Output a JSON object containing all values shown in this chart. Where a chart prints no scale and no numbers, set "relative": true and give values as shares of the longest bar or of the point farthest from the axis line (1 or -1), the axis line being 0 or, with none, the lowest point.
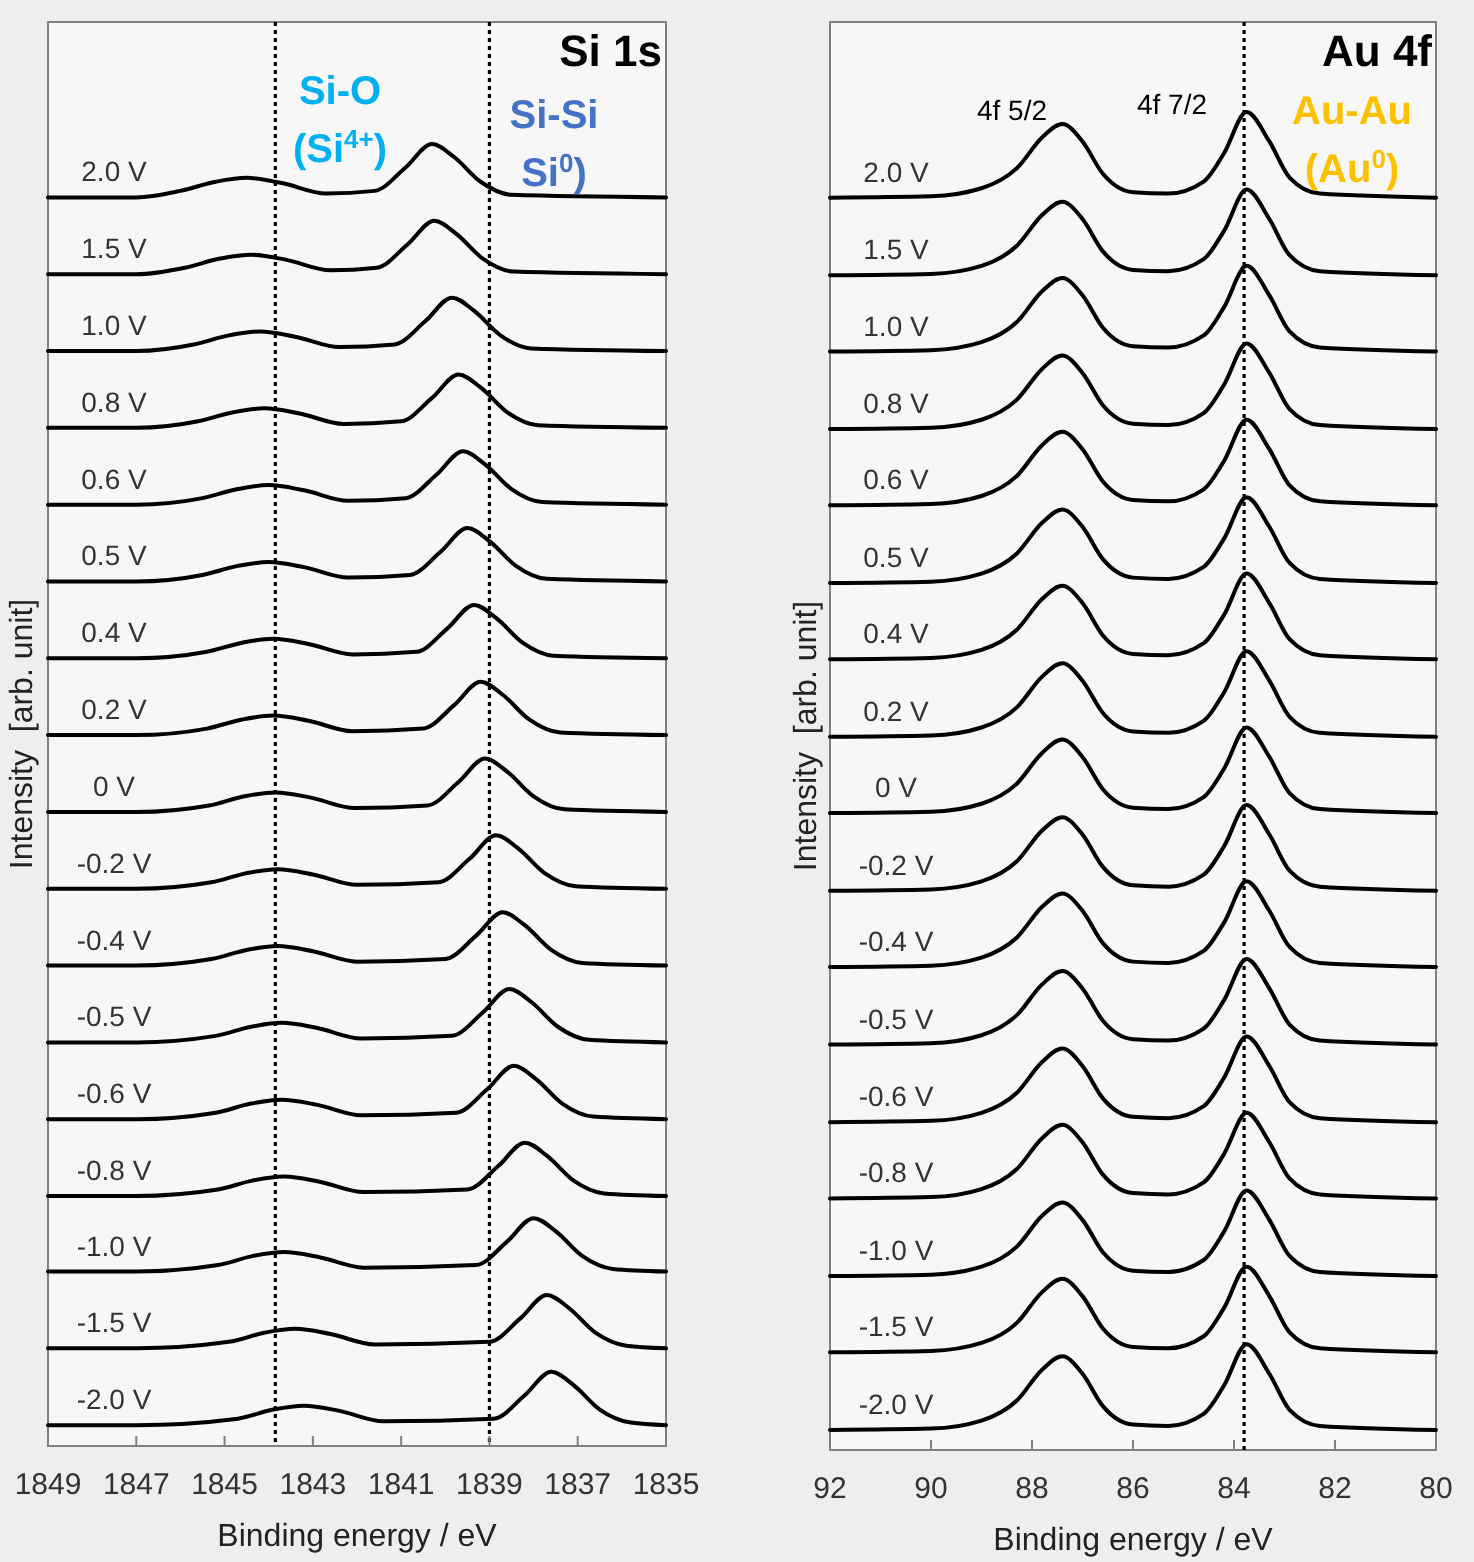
{
  "chart_data": [
    {
      "type": "line",
      "relative": true,
      "xlabel": "Binding energy / eV",
      "ylabel": "Intensity  [arb. unit]",
      "xlim": [
        1849,
        1835
      ],
      "xticks": [
        1849,
        1847,
        1845,
        1843,
        1841,
        1839,
        1837,
        1835
      ],
      "grid": false,
      "annotations": [
        "Si 1s",
        "Si-O (Si$^{4+}$)",
        "Si-Si Si$^{0}$)"
      ],
      "ref_lines": [
        {
          "axis": "x",
          "value": 1843.85,
          "line_style": "dotted",
          "color": "#000000"
        },
        {
          "axis": "x",
          "value": 1839.0,
          "line_style": "dotted",
          "color": "#000000"
        }
      ],
      "series": [
        {
          "name": "2.0 V",
          "color": "#000000",
          "x": [
            1849,
            1847,
            1846.0,
            1845.2,
            1844.5,
            1843.7,
            1842.7,
            1841.6,
            1840.9,
            1840.3,
            1839.8,
            1839.2,
            1838.5,
            1835
          ],
          "values": [
            0.959,
            0.959,
            0.964,
            0.971,
            0.974,
            0.97,
            0.962,
            0.964,
            0.982,
            1.0,
            0.99,
            0.971,
            0.961,
            0.959
          ]
        },
        {
          "name": "1.5 V",
          "color": "#000000",
          "x": [
            1849,
            1847,
            1845.9,
            1845.1,
            1844.4,
            1843.6,
            1842.6,
            1841.55,
            1840.85,
            1840.25,
            1839.75,
            1839.15,
            1838.45,
            1835
          ],
          "values": [
            0.9,
            0.9,
            0.905,
            0.912,
            0.915,
            0.911,
            0.903,
            0.905,
            0.923,
            0.941,
            0.931,
            0.912,
            0.902,
            0.9
          ]
        },
        {
          "name": "1.0 V",
          "color": "#000000",
          "x": [
            1849,
            1847,
            1845.7,
            1844.9,
            1844.2,
            1843.4,
            1842.4,
            1841.15,
            1840.45,
            1839.85,
            1839.35,
            1838.75,
            1838.05,
            1835
          ],
          "values": [
            0.841,
            0.841,
            0.846,
            0.853,
            0.856,
            0.852,
            0.844,
            0.846,
            0.864,
            0.882,
            0.872,
            0.853,
            0.843,
            0.841
          ]
        },
        {
          "name": "0.8 V",
          "color": "#000000",
          "x": [
            1849,
            1847,
            1845.6,
            1844.8,
            1844.1,
            1843.3,
            1842.3,
            1841.0,
            1840.3,
            1839.7,
            1839.2,
            1838.6,
            1837.9,
            1835
          ],
          "values": [
            0.782,
            0.782,
            0.787,
            0.794,
            0.797,
            0.793,
            0.785,
            0.787,
            0.805,
            0.823,
            0.813,
            0.794,
            0.784,
            0.782
          ]
        },
        {
          "name": "0.6 V",
          "color": "#000000",
          "x": [
            1849,
            1847,
            1845.5,
            1844.7,
            1844.0,
            1843.2,
            1842.2,
            1840.9,
            1840.2,
            1839.6,
            1839.1,
            1838.5,
            1837.8,
            1835
          ],
          "values": [
            0.723,
            0.723,
            0.728,
            0.735,
            0.738,
            0.734,
            0.726,
            0.728,
            0.746,
            0.764,
            0.754,
            0.735,
            0.725,
            0.723
          ]
        },
        {
          "name": "0.5 V",
          "color": "#000000",
          "x": [
            1849,
            1847,
            1845.5,
            1844.7,
            1844.0,
            1843.2,
            1842.2,
            1840.8,
            1840.1,
            1839.5,
            1839.0,
            1838.4,
            1837.7,
            1835
          ],
          "values": [
            0.664,
            0.664,
            0.669,
            0.676,
            0.679,
            0.675,
            0.667,
            0.669,
            0.687,
            0.705,
            0.695,
            0.676,
            0.666,
            0.664
          ]
        },
        {
          "name": "0.4 V",
          "color": "#000000",
          "x": [
            1849,
            1847,
            1845.4,
            1844.6,
            1843.9,
            1843.1,
            1842.1,
            1840.65,
            1839.95,
            1839.35,
            1838.85,
            1838.25,
            1837.55,
            1835
          ],
          "values": [
            0.605,
            0.605,
            0.61,
            0.617,
            0.62,
            0.616,
            0.608,
            0.61,
            0.628,
            0.646,
            0.636,
            0.617,
            0.607,
            0.605
          ]
        },
        {
          "name": "0.2 V",
          "color": "#000000",
          "x": [
            1849,
            1847,
            1845.4,
            1844.6,
            1843.9,
            1843.1,
            1842.1,
            1840.5,
            1839.8,
            1839.2,
            1838.7,
            1838.1,
            1837.4,
            1835
          ],
          "values": [
            0.546,
            0.546,
            0.551,
            0.558,
            0.561,
            0.557,
            0.549,
            0.551,
            0.569,
            0.587,
            0.577,
            0.558,
            0.548,
            0.546
          ]
        },
        {
          "name": "0 V",
          "color": "#000000",
          "x": [
            1849,
            1847,
            1845.35,
            1844.55,
            1843.85,
            1843.05,
            1842.05,
            1840.4,
            1839.7,
            1839.1,
            1838.6,
            1838.0,
            1837.3,
            1835
          ],
          "values": [
            0.487,
            0.487,
            0.492,
            0.499,
            0.502,
            0.498,
            0.49,
            0.492,
            0.51,
            0.528,
            0.518,
            0.499,
            0.489,
            0.487
          ]
        },
        {
          "name": "-0.2 V",
          "color": "#000000",
          "x": [
            1849,
            1847,
            1845.3,
            1844.5,
            1843.8,
            1843.0,
            1842.0,
            1840.15,
            1839.45,
            1838.85,
            1838.35,
            1837.75,
            1837.05,
            1835
          ],
          "values": [
            0.428,
            0.428,
            0.433,
            0.44,
            0.443,
            0.439,
            0.431,
            0.433,
            0.451,
            0.469,
            0.459,
            0.44,
            0.43,
            0.428
          ]
        },
        {
          "name": "-0.4 V",
          "color": "#000000",
          "x": [
            1849,
            1847,
            1845.3,
            1844.5,
            1843.8,
            1843.0,
            1842.0,
            1840.0,
            1839.3,
            1838.7,
            1838.2,
            1837.6,
            1836.9,
            1835
          ],
          "values": [
            0.369,
            0.369,
            0.374,
            0.381,
            0.384,
            0.38,
            0.372,
            0.374,
            0.392,
            0.41,
            0.4,
            0.381,
            0.371,
            0.369
          ]
        },
        {
          "name": "-0.5 V",
          "color": "#000000",
          "x": [
            1849,
            1847,
            1845.2,
            1844.4,
            1843.7,
            1842.9,
            1841.9,
            1839.85,
            1839.15,
            1838.55,
            1838.05,
            1837.45,
            1836.75,
            1835
          ],
          "values": [
            0.31,
            0.31,
            0.315,
            0.322,
            0.325,
            0.321,
            0.313,
            0.315,
            0.333,
            0.351,
            0.341,
            0.322,
            0.312,
            0.31
          ]
        },
        {
          "name": "-0.6 V",
          "color": "#000000",
          "x": [
            1849,
            1847,
            1845.2,
            1844.4,
            1843.7,
            1842.9,
            1841.9,
            1839.75,
            1839.05,
            1838.45,
            1837.95,
            1837.35,
            1836.65,
            1835
          ],
          "values": [
            0.251,
            0.251,
            0.256,
            0.263,
            0.266,
            0.262,
            0.254,
            0.256,
            0.274,
            0.292,
            0.282,
            0.263,
            0.253,
            0.251
          ]
        },
        {
          "name": "-0.8 V",
          "color": "#000000",
          "x": [
            1849,
            1847,
            1845.15,
            1844.35,
            1843.65,
            1842.85,
            1841.85,
            1839.5,
            1838.8,
            1838.2,
            1837.7,
            1837.1,
            1836.4,
            1835
          ],
          "values": [
            0.192,
            0.192,
            0.197,
            0.204,
            0.207,
            0.203,
            0.195,
            0.197,
            0.215,
            0.233,
            0.223,
            0.204,
            0.194,
            0.192
          ]
        },
        {
          "name": "-1.0 V",
          "color": "#000000",
          "x": [
            1849,
            1847,
            1845.15,
            1844.35,
            1843.65,
            1842.85,
            1841.85,
            1839.3,
            1838.6,
            1838.0,
            1837.5,
            1836.9,
            1836.2,
            1835
          ],
          "values": [
            0.134,
            0.134,
            0.139,
            0.146,
            0.149,
            0.145,
            0.137,
            0.139,
            0.157,
            0.175,
            0.165,
            0.146,
            0.136,
            0.134
          ]
        },
        {
          "name": "-1.5 V",
          "color": "#000000",
          "x": [
            1849,
            1847,
            1844.9,
            1844.1,
            1843.4,
            1842.6,
            1841.6,
            1839.0,
            1838.3,
            1837.7,
            1837.2,
            1836.6,
            1835.9,
            1835
          ],
          "values": [
            0.075,
            0.075,
            0.08,
            0.087,
            0.09,
            0.086,
            0.078,
            0.08,
            0.098,
            0.116,
            0.106,
            0.087,
            0.077,
            0.075
          ]
        },
        {
          "name": "-2.0 V",
          "color": "#000000",
          "x": [
            1849,
            1847,
            1844.7,
            1843.9,
            1843.2,
            1842.4,
            1841.4,
            1838.9,
            1838.2,
            1837.6,
            1837.1,
            1836.5,
            1835.8,
            1835
          ],
          "values": [
            0.016,
            0.016,
            0.021,
            0.028,
            0.031,
            0.027,
            0.019,
            0.021,
            0.039,
            0.057,
            0.047,
            0.028,
            0.018,
            0.016
          ]
        }
      ]
    },
    {
      "type": "line",
      "relative": true,
      "xlabel": "Binding energy / eV",
      "ylabel": "Intensity  [arb. unit]",
      "xlim": [
        92,
        80
      ],
      "xticks": [
        92,
        90,
        88,
        86,
        84,
        82,
        80
      ],
      "grid": false,
      "annotations": [
        "Au 4f",
        "4f 5/2",
        "4f 7/2",
        "Au-Au (Au$^{0}$)"
      ],
      "ref_lines": [
        {
          "axis": "x",
          "value": 83.8,
          "line_style": "dotted",
          "color": "#000000"
        }
      ],
      "x": [
        92,
        90,
        89,
        88.3,
        87.8,
        87.4,
        87.0,
        86.6,
        86.0,
        85.3,
        84.6,
        84.2,
        83.75,
        83.3,
        82.9,
        82.3,
        80
      ],
      "series": [
        {
          "name": "2.0 V",
          "color": "#000000",
          "values": [
            0.936,
            0.937,
            0.943,
            0.958,
            0.981,
            0.991,
            0.978,
            0.954,
            0.94,
            0.939,
            0.948,
            0.969,
            1.0,
            0.978,
            0.951,
            0.939,
            0.936
          ]
        },
        {
          "name": "1.5 V",
          "color": "#000000",
          "values": [
            0.878,
            0.879,
            0.885,
            0.9,
            0.923,
            0.933,
            0.92,
            0.896,
            0.882,
            0.881,
            0.89,
            0.911,
            0.942,
            0.92,
            0.893,
            0.881,
            0.878
          ]
        },
        {
          "name": "1.0 V",
          "color": "#000000",
          "values": [
            0.821,
            0.822,
            0.828,
            0.843,
            0.866,
            0.876,
            0.863,
            0.839,
            0.825,
            0.824,
            0.833,
            0.854,
            0.885,
            0.863,
            0.836,
            0.824,
            0.821
          ]
        },
        {
          "name": "0.8 V",
          "color": "#000000",
          "values": [
            0.763,
            0.764,
            0.77,
            0.785,
            0.808,
            0.818,
            0.805,
            0.781,
            0.767,
            0.766,
            0.775,
            0.796,
            0.827,
            0.805,
            0.778,
            0.766,
            0.763
          ]
        },
        {
          "name": "0.6 V",
          "color": "#000000",
          "values": [
            0.706,
            0.707,
            0.713,
            0.728,
            0.751,
            0.761,
            0.748,
            0.724,
            0.71,
            0.709,
            0.718,
            0.739,
            0.77,
            0.748,
            0.721,
            0.709,
            0.706
          ]
        },
        {
          "name": "0.5 V",
          "color": "#000000",
          "values": [
            0.648,
            0.649,
            0.655,
            0.67,
            0.693,
            0.703,
            0.69,
            0.666,
            0.652,
            0.651,
            0.66,
            0.681,
            0.712,
            0.69,
            0.663,
            0.651,
            0.648
          ]
        },
        {
          "name": "0.4 V",
          "color": "#000000",
          "values": [
            0.591,
            0.592,
            0.598,
            0.613,
            0.636,
            0.646,
            0.633,
            0.609,
            0.595,
            0.594,
            0.603,
            0.624,
            0.655,
            0.633,
            0.606,
            0.594,
            0.591
          ]
        },
        {
          "name": "0.2 V",
          "color": "#000000",
          "values": [
            0.533,
            0.534,
            0.54,
            0.555,
            0.578,
            0.588,
            0.575,
            0.551,
            0.537,
            0.536,
            0.545,
            0.566,
            0.597,
            0.575,
            0.548,
            0.536,
            0.533
          ]
        },
        {
          "name": "0 V",
          "color": "#000000",
          "values": [
            0.476,
            0.477,
            0.483,
            0.498,
            0.521,
            0.531,
            0.518,
            0.494,
            0.48,
            0.479,
            0.488,
            0.509,
            0.54,
            0.518,
            0.491,
            0.479,
            0.476
          ]
        },
        {
          "name": "-0.2 V",
          "color": "#000000",
          "values": [
            0.418,
            0.419,
            0.425,
            0.44,
            0.463,
            0.473,
            0.46,
            0.436,
            0.422,
            0.421,
            0.43,
            0.451,
            0.482,
            0.46,
            0.433,
            0.421,
            0.418
          ]
        },
        {
          "name": "-0.4 V",
          "color": "#000000",
          "values": [
            0.361,
            0.362,
            0.368,
            0.383,
            0.406,
            0.416,
            0.403,
            0.379,
            0.365,
            0.364,
            0.373,
            0.394,
            0.425,
            0.403,
            0.376,
            0.364,
            0.361
          ]
        },
        {
          "name": "-0.5 V",
          "color": "#000000",
          "values": [
            0.303,
            0.304,
            0.31,
            0.325,
            0.348,
            0.358,
            0.345,
            0.321,
            0.307,
            0.306,
            0.315,
            0.336,
            0.367,
            0.345,
            0.318,
            0.306,
            0.303
          ]
        },
        {
          "name": "-0.6 V",
          "color": "#000000",
          "values": [
            0.245,
            0.246,
            0.252,
            0.267,
            0.29,
            0.3,
            0.287,
            0.263,
            0.249,
            0.248,
            0.257,
            0.278,
            0.309,
            0.287,
            0.26,
            0.248,
            0.245
          ]
        },
        {
          "name": "-0.8 V",
          "color": "#000000",
          "values": [
            0.188,
            0.189,
            0.195,
            0.21,
            0.233,
            0.243,
            0.23,
            0.206,
            0.192,
            0.191,
            0.2,
            0.221,
            0.252,
            0.23,
            0.203,
            0.191,
            0.188
          ]
        },
        {
          "name": "-1.0 V",
          "color": "#000000",
          "values": [
            0.13,
            0.131,
            0.137,
            0.152,
            0.175,
            0.185,
            0.172,
            0.148,
            0.134,
            0.133,
            0.142,
            0.163,
            0.194,
            0.172,
            0.145,
            0.133,
            0.13
          ]
        },
        {
          "name": "-1.5 V",
          "color": "#000000",
          "values": [
            0.073,
            0.074,
            0.08,
            0.095,
            0.118,
            0.128,
            0.115,
            0.091,
            0.077,
            0.076,
            0.085,
            0.106,
            0.137,
            0.115,
            0.088,
            0.076,
            0.073
          ]
        },
        {
          "name": "-2.0 V",
          "color": "#000000",
          "values": [
            0.015,
            0.016,
            0.022,
            0.037,
            0.06,
            0.07,
            0.057,
            0.033,
            0.019,
            0.018,
            0.027,
            0.048,
            0.079,
            0.057,
            0.03,
            0.018,
            0.015
          ]
        }
      ]
    }
  ]
}
